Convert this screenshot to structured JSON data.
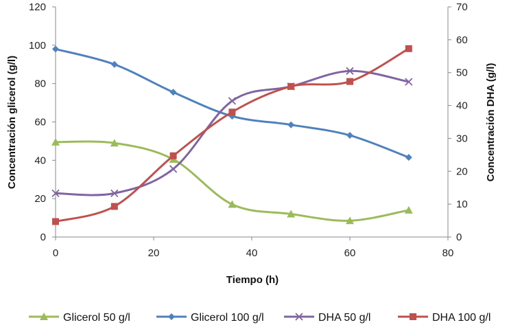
{
  "chart_data": {
    "type": "line",
    "title": "",
    "xlabel": "Tiempo (h)",
    "ylabel_left": "Concentración glicerol (g/l)",
    "ylabel_right": "Concentración DHA (g/l)",
    "xlim": [
      0,
      80
    ],
    "xticks": [
      "0",
      "20",
      "40",
      "60",
      "80"
    ],
    "ylim_left": [
      0,
      120
    ],
    "yticks_left": [
      "0",
      "20",
      "40",
      "60",
      "80",
      "100",
      "120"
    ],
    "ylim_right": [
      0,
      70
    ],
    "yticks_right": [
      "0",
      "10",
      "20",
      "30",
      "40",
      "50",
      "60",
      "70"
    ],
    "grid": false,
    "legend_position": "bottom",
    "series": [
      {
        "name": "Glicerol  50 g/l",
        "axis": "left",
        "color": "#9bbb59",
        "marker": "triangle",
        "x": [
          0,
          12,
          24,
          36,
          48,
          60,
          72
        ],
        "values": [
          49.5,
          49,
          40.5,
          17,
          12,
          8.5,
          14
        ]
      },
      {
        "name": "Glicerol  100 g/l",
        "axis": "left",
        "color": "#4f81bd",
        "marker": "diamond",
        "x": [
          0,
          12,
          24,
          36,
          48,
          60,
          72
        ],
        "values": [
          98,
          90,
          75.5,
          63,
          58.5,
          53,
          41.5
        ]
      },
      {
        "name": "DHA  50 g/l",
        "axis": "right",
        "color": "#8064a2",
        "marker": "x",
        "x": [
          0,
          12,
          24,
          36,
          48,
          60,
          72
        ],
        "values": [
          13.3,
          13.3,
          20.7,
          41.4,
          45.8,
          50.5,
          47.2
        ]
      },
      {
        "name": "DHA  100 g/l",
        "axis": "right",
        "color": "#c0504d",
        "marker": "square",
        "x": [
          0,
          12,
          24,
          36,
          48,
          60,
          72
        ],
        "values": [
          4.7,
          9.3,
          24.7,
          38,
          45.8,
          47.3,
          57.3
        ]
      }
    ]
  }
}
